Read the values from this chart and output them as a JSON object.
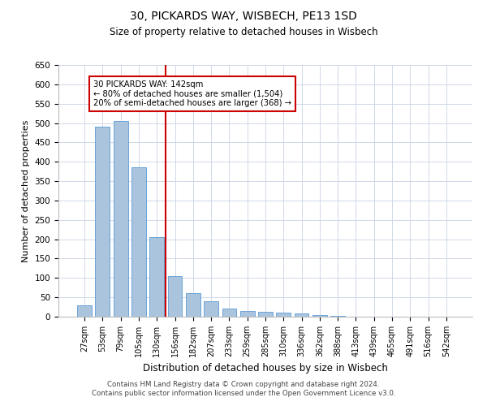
{
  "title1": "30, PICKARDS WAY, WISBECH, PE13 1SD",
  "title2": "Size of property relative to detached houses in Wisbech",
  "xlabel": "Distribution of detached houses by size in Wisbech",
  "ylabel": "Number of detached properties",
  "categories": [
    "27sqm",
    "53sqm",
    "79sqm",
    "105sqm",
    "130sqm",
    "156sqm",
    "182sqm",
    "207sqm",
    "233sqm",
    "259sqm",
    "285sqm",
    "310sqm",
    "336sqm",
    "362sqm",
    "388sqm",
    "413sqm",
    "439sqm",
    "465sqm",
    "491sqm",
    "516sqm",
    "542sqm"
  ],
  "values": [
    30,
    490,
    505,
    385,
    205,
    105,
    60,
    40,
    20,
    15,
    12,
    10,
    8,
    4,
    2,
    1,
    0,
    1,
    0,
    1,
    1
  ],
  "bar_color": "#aac4de",
  "bar_edge_color": "#5b9bd5",
  "vline_x": 4.5,
  "vline_color": "#cc0000",
  "annotation_text": "30 PICKARDS WAY: 142sqm\n← 80% of detached houses are smaller (1,504)\n20% of semi-detached houses are larger (368) →",
  "annotation_box_color": "#ffffff",
  "annotation_box_edge_color": "#cc0000",
  "ylim": [
    0,
    650
  ],
  "yticks": [
    0,
    50,
    100,
    150,
    200,
    250,
    300,
    350,
    400,
    450,
    500,
    550,
    600,
    650
  ],
  "footer1": "Contains HM Land Registry data © Crown copyright and database right 2024.",
  "footer2": "Contains public sector information licensed under the Open Government Licence v3.0.",
  "bg_color": "#ffffff",
  "grid_color": "#d0d8e8"
}
